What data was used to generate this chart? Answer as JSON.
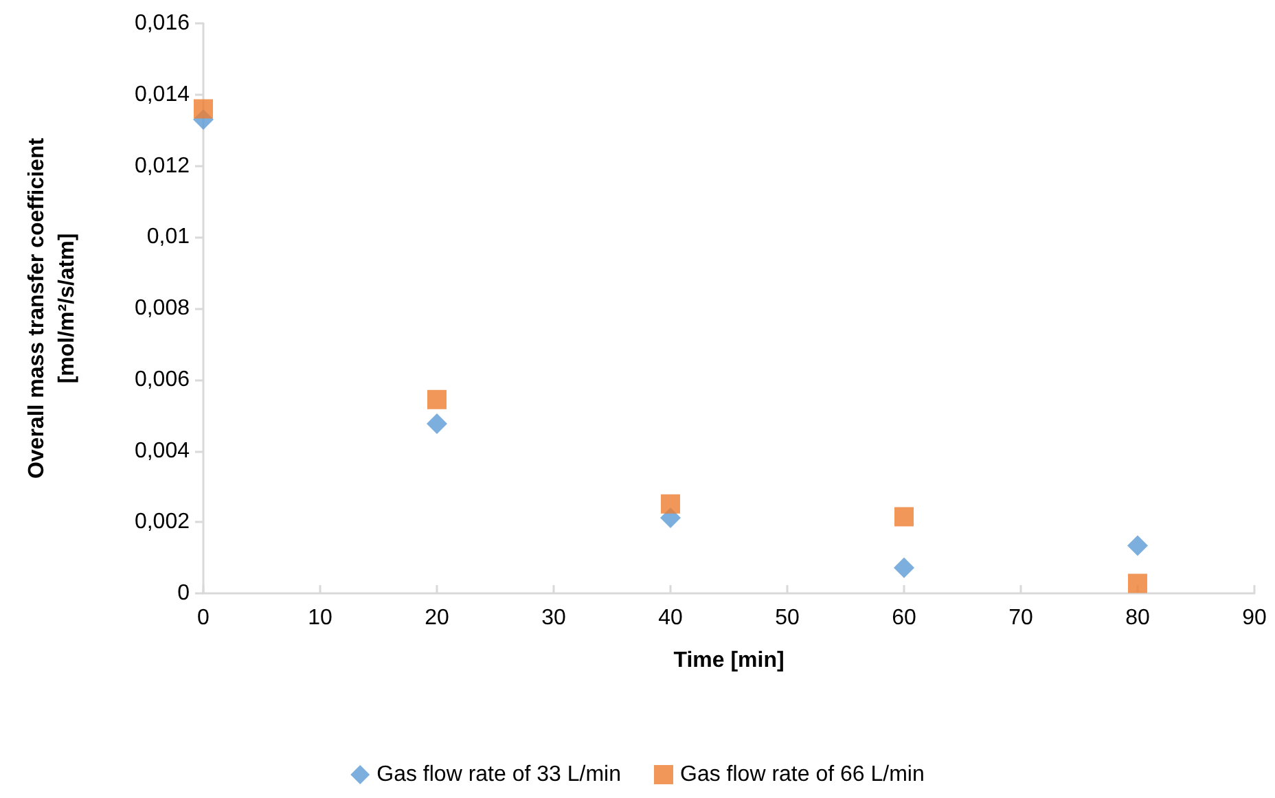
{
  "chart_data": {
    "type": "scatter",
    "xlabel": "Time [min]",
    "ylabel": "Overall mass transfer coefficient\n[mol/m²/s/atm]",
    "x": [
      0,
      20,
      40,
      60,
      80
    ],
    "series": [
      {
        "name": "Gas flow rate of 33 L/min",
        "color": "#5b9bd5",
        "marker": "diamond",
        "values": [
          0.0133,
          0.00476,
          0.00212,
          0.00072,
          0.00134
        ]
      },
      {
        "name": "Gas flow rate of 66 L/min",
        "color": "#ed7d31",
        "marker": "square",
        "values": [
          0.0136,
          0.00544,
          0.00251,
          0.00215,
          0.00028
        ]
      }
    ],
    "xlim": [
      0,
      90
    ],
    "xticks": [
      0,
      10,
      20,
      30,
      40,
      50,
      60,
      70,
      80,
      90
    ],
    "ylim": [
      0,
      0.016
    ],
    "yticks": [
      0,
      {
        "value": 0.002,
        "label": "0,002"
      },
      {
        "value": 0.004,
        "label": "0,004"
      },
      {
        "value": 0.006,
        "label": "0,006"
      },
      {
        "value": 0.008,
        "label": "0,008"
      },
      {
        "value": 0.01,
        "label": "0,01"
      },
      {
        "value": 0.012,
        "label": "0,012"
      },
      {
        "value": 0.014,
        "label": "0,014"
      },
      {
        "value": 0.016,
        "label": "0,016"
      }
    ],
    "grid": false,
    "legend": "bottom"
  }
}
